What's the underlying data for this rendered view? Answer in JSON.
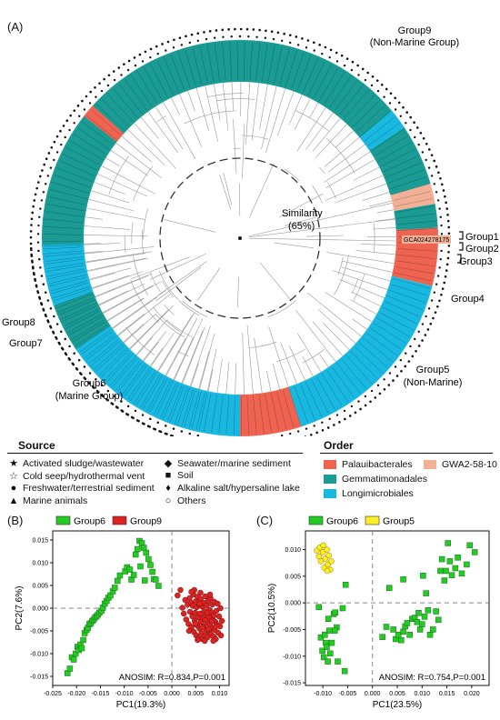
{
  "panel_a": {
    "label": "(A)",
    "similarity_label": "Similarity",
    "similarity_value": "(65%)",
    "genome_label": "GCA024278175",
    "groups": [
      {
        "name": "Group9",
        "sub": "(Non-Marine Group)"
      },
      {
        "name": "Group1",
        "sub": ""
      },
      {
        "name": "Group2",
        "sub": ""
      },
      {
        "name": "Group3",
        "sub": ""
      },
      {
        "name": "Group4",
        "sub": ""
      },
      {
        "name": "Group5",
        "sub": "(Non-Marine)"
      },
      {
        "name": "Group6",
        "sub": "(Marine Group)"
      },
      {
        "name": "Group7",
        "sub": ""
      },
      {
        "name": "Group8",
        "sub": ""
      }
    ],
    "colors": {
      "gemmatimonadales": "#1a9c94",
      "longimicrobiales": "#19b8e0",
      "palauibacterales": "#ee6450",
      "gwa2": "#f2b196"
    }
  },
  "legend": {
    "source_title": "Source",
    "order_title": "Order",
    "sources": [
      {
        "glyph": "star-filled-icon",
        "symbol": "★",
        "label": "Activated sludge/wastewater"
      },
      {
        "glyph": "star-outline-icon",
        "symbol": "☆",
        "label": "Cold seep/hydrothermal vent"
      },
      {
        "glyph": "circle-filled-icon",
        "symbol": "●",
        "label": "Freshwater/terrestrial sediment"
      },
      {
        "glyph": "triangle-filled-icon",
        "symbol": "▲",
        "label": "Marine animals"
      },
      {
        "glyph": "diamond-filled-icon",
        "symbol": "◆",
        "label": "Seawater/marine sediment"
      },
      {
        "glyph": "square-filled-icon",
        "symbol": "■",
        "label": "Soil"
      },
      {
        "glyph": "thin-diamond-icon",
        "symbol": "♦",
        "label": "Alkaline salt/hypersaline lake"
      },
      {
        "glyph": "circle-outline-icon",
        "symbol": "○",
        "label": "Others"
      }
    ],
    "orders": [
      {
        "label": "Palauibacterales",
        "color": "#ee6450"
      },
      {
        "label": "GWA2-58-10",
        "color": "#f2b196"
      },
      {
        "label": "Gemmatimonadales",
        "color": "#1a9c94"
      },
      {
        "label": "Longimicrobiales",
        "color": "#19b8e0"
      }
    ]
  },
  "chart_data": [
    {
      "type": "scatter",
      "panel": "(B)",
      "title": "",
      "xlabel": "PC1(19.3%)",
      "ylabel": "PC2(7.6%)",
      "xlim": [
        -0.025,
        0.012
      ],
      "ylim": [
        -0.017,
        0.017
      ],
      "xticks": [
        -0.025,
        -0.02,
        -0.015,
        -0.01,
        -0.005,
        0.0,
        0.005,
        0.01
      ],
      "xtick_labels": [
        "-0.025",
        "-0.020",
        "-0.015",
        "-0.010",
        "-0.005",
        "0.000",
        "0.005",
        "0.010"
      ],
      "yticks": [
        -0.015,
        -0.01,
        -0.005,
        0.0,
        0.005,
        0.01,
        0.015
      ],
      "ytick_labels": [
        "-0.015",
        "-0.010",
        "-0.005",
        "0.000",
        "0.005",
        "0.010",
        "0.015"
      ],
      "legend_position": "top",
      "annotation": "ANOSIM: R=0.834,P=0.001",
      "series": [
        {
          "name": "Group6",
          "color": "#22cc22",
          "marker": "square",
          "points": [
            [
              -0.0219,
              -0.0143
            ],
            [
              -0.0214,
              -0.0133
            ],
            [
              -0.021,
              -0.0108
            ],
            [
              -0.0206,
              -0.0113
            ],
            [
              -0.0202,
              -0.01
            ],
            [
              -0.0198,
              -0.0085
            ],
            [
              -0.0195,
              -0.0092
            ],
            [
              -0.0192,
              -0.008
            ],
            [
              -0.0189,
              -0.0088
            ],
            [
              -0.0186,
              -0.007
            ],
            [
              -0.0183,
              -0.0055
            ],
            [
              -0.0179,
              -0.0048
            ],
            [
              -0.0176,
              -0.0043
            ],
            [
              -0.0173,
              -0.0035
            ],
            [
              -0.017,
              -0.0033
            ],
            [
              -0.0167,
              -0.0028
            ],
            [
              -0.0164,
              -0.0025
            ],
            [
              -0.0161,
              -0.002
            ],
            [
              -0.0158,
              -0.0018
            ],
            [
              -0.0155,
              -0.0014
            ],
            [
              -0.0152,
              -0.001
            ],
            [
              -0.0148,
              -0.0006
            ],
            [
              -0.0145,
              0.0001
            ],
            [
              -0.0141,
              0.001
            ],
            [
              -0.0137,
              0.0016
            ],
            [
              -0.0133,
              0.0023
            ],
            [
              -0.0129,
              0.0028
            ],
            [
              -0.0124,
              0.0037
            ],
            [
              -0.012,
              0.0045
            ],
            [
              -0.0114,
              0.006
            ],
            [
              -0.0109,
              0.0072
            ],
            [
              -0.0098,
              0.0081
            ],
            [
              -0.0094,
              0.009
            ],
            [
              -0.0088,
              0.0085
            ],
            [
              -0.0085,
              0.0063
            ],
            [
              -0.008,
              0.0073
            ],
            [
              -0.0076,
              0.0118
            ],
            [
              -0.0072,
              0.013
            ],
            [
              -0.0068,
              0.0148
            ],
            [
              -0.0063,
              0.0143
            ],
            [
              -0.0059,
              0.0133
            ],
            [
              -0.0054,
              0.0122
            ],
            [
              -0.0049,
              0.0108
            ],
            [
              -0.0045,
              0.0095
            ],
            [
              -0.0041,
              0.008
            ],
            [
              -0.0038,
              0.0064
            ],
            [
              -0.0034,
              0.0063
            ],
            [
              -0.0028,
              0.0049
            ],
            [
              -0.0057,
              0.0061
            ],
            [
              -0.0066,
              0.0092
            ]
          ]
        },
        {
          "name": "Group9",
          "color": "#dd2222",
          "marker": "circle",
          "points": [
            [
              0.0012,
              0.0028
            ],
            [
              0.0018,
              0.004
            ],
            [
              0.0022,
              0.0001
            ],
            [
              0.0025,
              -0.0012
            ],
            [
              0.0028,
              0.0018
            ],
            [
              0.003,
              -0.0025
            ],
            [
              0.0033,
              0.0008
            ],
            [
              0.0035,
              -0.0035
            ],
            [
              0.0037,
              0.0022
            ],
            [
              0.0038,
              -0.0008
            ],
            [
              0.004,
              0.0012
            ],
            [
              0.0041,
              -0.0042
            ],
            [
              0.0043,
              -0.0018
            ],
            [
              0.0044,
              0.0005
            ],
            [
              0.0045,
              0.003
            ],
            [
              0.0046,
              -0.0052
            ],
            [
              0.0048,
              -0.0028
            ],
            [
              0.0049,
              -0.001
            ],
            [
              0.005,
              0.0015
            ],
            [
              0.0051,
              -0.006
            ],
            [
              0.0052,
              0.0002
            ],
            [
              0.0053,
              -0.0038
            ],
            [
              0.0054,
              0.0025
            ],
            [
              0.0055,
              -0.002
            ],
            [
              0.0056,
              -0.0066
            ],
            [
              0.0057,
              0.0008
            ],
            [
              0.0058,
              -0.0045
            ],
            [
              0.0059,
              -0.0012
            ],
            [
              0.006,
              0.002
            ],
            [
              0.0061,
              -0.003
            ],
            [
              0.0062,
              -0.0055
            ],
            [
              0.0063,
              0.0004
            ],
            [
              0.0064,
              -0.0068
            ],
            [
              0.0065,
              -0.0022
            ],
            [
              0.0066,
              0.0012
            ],
            [
              0.0067,
              -0.004
            ],
            [
              0.0068,
              -0.0006
            ],
            [
              0.0069,
              -0.006
            ],
            [
              0.007,
              0.0026
            ],
            [
              0.0071,
              -0.0015
            ],
            [
              0.0072,
              -0.0048
            ],
            [
              0.0073,
              0.0006
            ],
            [
              0.0074,
              -0.0032
            ],
            [
              0.0075,
              -0.0064
            ],
            [
              0.0076,
              0.0016
            ],
            [
              0.0077,
              -0.002
            ],
            [
              0.0078,
              -0.0052
            ],
            [
              0.0079,
              -0.0004
            ],
            [
              0.008,
              -0.0038
            ],
            [
              0.0081,
              0.0022
            ],
            [
              0.0082,
              -0.0058
            ],
            [
              0.0083,
              -0.001
            ],
            [
              0.0084,
              -0.0044
            ],
            [
              0.0085,
              0.0008
            ],
            [
              0.0086,
              -0.0026
            ],
            [
              0.0087,
              -0.0062
            ],
            [
              0.0088,
              -0.0016
            ],
            [
              0.0089,
              0.0014
            ],
            [
              0.009,
              -0.0048
            ],
            [
              0.0091,
              -0.003
            ],
            [
              0.0092,
              -0.0068
            ],
            [
              0.0093,
              -0.0006
            ],
            [
              0.0095,
              -0.0036
            ],
            [
              0.0097,
              -0.0054
            ],
            [
              0.0099,
              -0.0018
            ],
            [
              0.0101,
              -0.004
            ],
            [
              0.0103,
              -0.006
            ],
            [
              0.0105,
              -0.0028
            ],
            [
              0.0102,
              0.0
            ],
            [
              0.0096,
              0.001
            ],
            [
              0.0047,
              0.004
            ],
            [
              0.006,
              0.0034
            ],
            [
              0.008,
              0.003
            ],
            [
              0.0036,
              -0.005
            ],
            [
              0.0041,
              0.0036
            ],
            [
              0.0069,
              -0.0072
            ],
            [
              0.0087,
              -0.0072
            ],
            [
              0.0054,
              -0.007
            ],
            [
              0.0074,
              -0.001
            ],
            [
              0.0064,
              -0.0042
            ],
            [
              0.0058,
              0.001
            ],
            [
              0.007,
              -0.0026
            ],
            [
              0.0084,
              -0.0028
            ],
            [
              0.0049,
              -0.0034
            ],
            [
              0.0092,
              -0.004
            ],
            [
              0.0077,
              -0.0046
            ]
          ]
        }
      ]
    },
    {
      "type": "scatter",
      "panel": "(C)",
      "title": "",
      "xlabel": "PC1(23.5%)",
      "ylabel": "PC2(10.5%)",
      "xlim": [
        -0.0135,
        0.0235
      ],
      "ylim": [
        -0.0155,
        0.0135
      ],
      "xticks": [
        -0.01,
        -0.005,
        0.0,
        0.005,
        0.01,
        0.015,
        0.02
      ],
      "xtick_labels": [
        "-0.010",
        "-0.005",
        "0.000",
        "0.005",
        "0.010",
        "0.015",
        "0.020"
      ],
      "yticks": [
        -0.015,
        -0.01,
        -0.005,
        0.0,
        0.005,
        0.01
      ],
      "ytick_labels": [
        "-0.015",
        "-0.010",
        "-0.005",
        "0.000",
        "0.005",
        "0.010"
      ],
      "legend_position": "top",
      "annotation": "ANOSIM: R=0.754,P=0.001",
      "series": [
        {
          "name": "Group6",
          "color": "#22cc22",
          "marker": "square",
          "points": [
            [
              -0.0108,
              -0.0008
            ],
            [
              -0.0104,
              -0.0065
            ],
            [
              -0.0101,
              -0.009
            ],
            [
              -0.0098,
              -0.0102
            ],
            [
              -0.0096,
              -0.006
            ],
            [
              -0.0094,
              -0.0075
            ],
            [
              -0.0092,
              -0.0083
            ],
            [
              -0.0089,
              -0.003
            ],
            [
              -0.0087,
              -0.0052
            ],
            [
              -0.0085,
              -0.0095
            ],
            [
              -0.0082,
              -0.0075
            ],
            [
              -0.0078,
              -0.0021
            ],
            [
              -0.0075,
              -0.0018
            ],
            [
              -0.0072,
              -0.0046
            ],
            [
              -0.007,
              -0.011
            ],
            [
              -0.006,
              -0.001
            ],
            [
              -0.0056,
              -0.0128
            ],
            [
              -0.0054,
              0.0034
            ],
            [
              -0.009,
              -0.011
            ],
            [
              -0.0076,
              -0.0052
            ],
            [
              0.002,
              -0.0064
            ],
            [
              0.0028,
              -0.0045
            ],
            [
              0.0034,
              0.0028
            ],
            [
              0.0042,
              -0.005
            ],
            [
              0.0047,
              -0.0068
            ],
            [
              0.0052,
              -0.006
            ],
            [
              0.0058,
              -0.007
            ],
            [
              0.0062,
              -0.0054
            ],
            [
              0.0066,
              -0.0044
            ],
            [
              0.007,
              -0.0038
            ],
            [
              0.0075,
              -0.006
            ],
            [
              0.008,
              -0.003
            ],
            [
              0.0085,
              -0.0028
            ],
            [
              0.009,
              -0.0036
            ],
            [
              0.0093,
              -0.0019
            ],
            [
              0.0096,
              -0.005
            ],
            [
              0.01,
              -0.004
            ],
            [
              0.0105,
              -0.0026
            ],
            [
              0.0108,
              0.0018
            ],
            [
              0.0112,
              -0.0014
            ],
            [
              0.0116,
              -0.006
            ],
            [
              0.0122,
              -0.005
            ],
            [
              0.0128,
              -0.0016
            ],
            [
              0.0133,
              -0.0032
            ],
            [
              0.0137,
              0.006
            ],
            [
              0.014,
              0.0082
            ],
            [
              0.0145,
              0.0042
            ],
            [
              0.0148,
              0.006
            ],
            [
              0.0152,
              0.0112
            ],
            [
              0.0156,
              0.0078
            ],
            [
              0.016,
              0.0052
            ],
            [
              0.0167,
              0.0065
            ],
            [
              0.0172,
              0.0085
            ],
            [
              0.018,
              0.0055
            ],
            [
              0.019,
              0.0072
            ],
            [
              0.0196,
              0.0108
            ],
            [
              0.0206,
              0.0095
            ],
            [
              0.0062,
              0.0044
            ],
            [
              0.0102,
              0.0051
            ]
          ]
        },
        {
          "name": "Group5",
          "color": "#ffee22",
          "marker": "circle",
          "points": [
            [
              -0.0112,
              0.0098
            ],
            [
              -0.0108,
              0.0087
            ],
            [
              -0.0104,
              0.0078
            ],
            [
              -0.01,
              0.0095
            ],
            [
              -0.0097,
              0.0066
            ],
            [
              -0.0095,
              0.0083
            ],
            [
              -0.0092,
              0.01
            ],
            [
              -0.009,
              0.0072
            ],
            [
              -0.0088,
              0.0089
            ],
            [
              -0.0085,
              0.0062
            ],
            [
              -0.0083,
              0.0078
            ],
            [
              -0.0106,
              0.0104
            ],
            [
              -0.0099,
              0.0108
            ],
            [
              -0.0091,
              0.006
            ]
          ]
        }
      ]
    }
  ]
}
